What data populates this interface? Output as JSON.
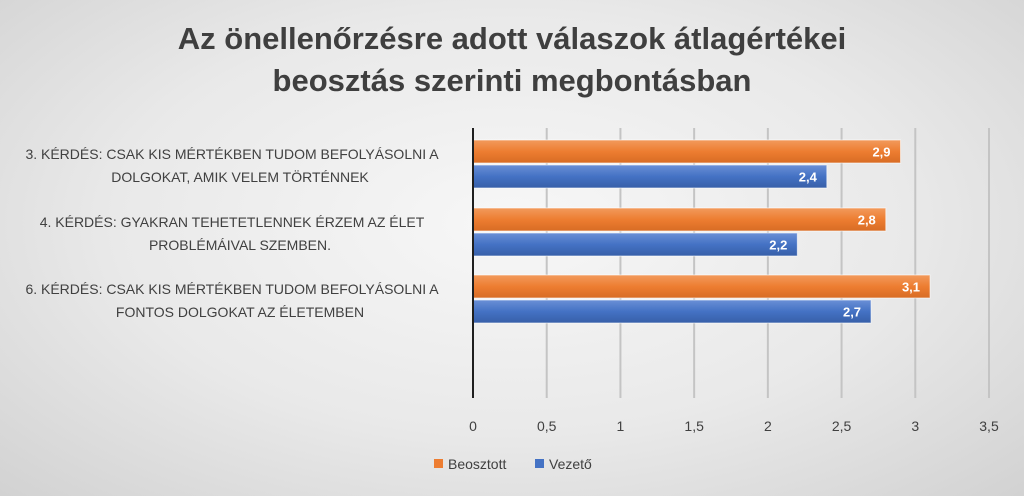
{
  "chart_data": {
    "type": "bar",
    "orientation": "horizontal",
    "title_lines": [
      "Az önellenőrzésre adott válaszok átlagértékei",
      "beosztás szerinti megbontásban"
    ],
    "categories": [
      [
        "3. KÉRDÉS:  CSAK KIS MÉRTÉKBEN TUDOM BEFOLYÁSOLNI A",
        "DOLGOKAT, AMIK VELEM TÖRTÉNNEK"
      ],
      [
        "4. KÉRDÉS:  GYAKRAN TEHETETLENNEK ÉRZEM AZ ÉLET",
        "PROBLÉMÁIVAL SZEMBEN."
      ],
      [
        "6. KÉRDÉS:  CSAK KIS MÉRTÉKBEN TUDOM BEFOLYÁSOLNI A",
        "FONTOS DOLGOKAT AZ ÉLETEMBEN"
      ]
    ],
    "series": [
      {
        "name": "Beosztott",
        "color": "#ED7D31",
        "values": [
          2.9,
          2.8,
          3.1
        ],
        "labels": [
          "2,9",
          "2,8",
          "3,1"
        ]
      },
      {
        "name": "Vezető",
        "color": "#4472C4",
        "values": [
          2.4,
          2.2,
          2.7
        ],
        "labels": [
          "2,4",
          "2,2",
          "2,7"
        ]
      }
    ],
    "xlim": [
      0,
      3.5
    ],
    "x_ticks": [
      0,
      0.5,
      1,
      1.5,
      2,
      2.5,
      3,
      3.5
    ],
    "x_tick_labels": [
      "0",
      "0,5",
      "1",
      "1,5",
      "2",
      "2,5",
      "3",
      "3,5"
    ],
    "grid": true,
    "legend_position": "bottom"
  }
}
